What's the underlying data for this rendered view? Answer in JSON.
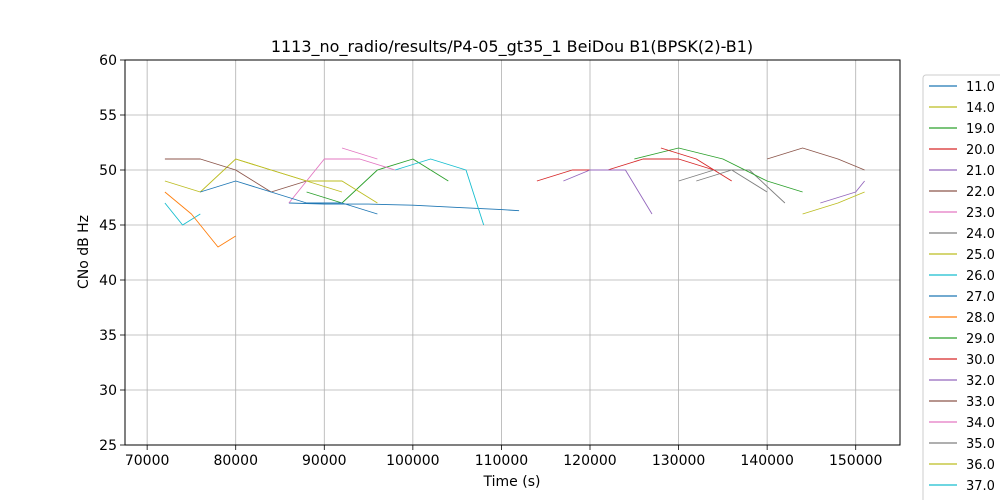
{
  "chart_data": {
    "type": "line",
    "title": "1113_no_radio/results/P4-05_gt35_1 BeiDou B1(BPSK(2)-B1)",
    "xlabel": "Time (s)",
    "ylabel": "CNo dB Hz",
    "xlim": [
      67500,
      155000
    ],
    "ylim": [
      25,
      60
    ],
    "xticks": [
      70000,
      80000,
      90000,
      100000,
      110000,
      120000,
      130000,
      140000,
      150000
    ],
    "yticks": [
      25,
      30,
      35,
      40,
      45,
      50,
      55,
      60
    ],
    "grid": true,
    "legend_position": "right (outside)",
    "series": [
      {
        "name": "11.0",
        "color": "#1f77b4",
        "x": [
          86000,
          90000,
          95000,
          100000,
          105000,
          110000,
          112000
        ],
        "y": [
          47.0,
          46.9,
          46.9,
          46.8,
          46.6,
          46.4,
          46.3
        ]
      },
      {
        "name": "14.0",
        "color": "#bcbd22",
        "x": [
          72000,
          76000,
          80000,
          84000,
          88000,
          92000
        ],
        "y": [
          49,
          48,
          51,
          50,
          49,
          48
        ]
      },
      {
        "name": "19.0",
        "color": "#2ca02c",
        "x": [
          88000,
          92000,
          96000,
          100000,
          104000
        ],
        "y": [
          48,
          47,
          50,
          51,
          49
        ]
      },
      {
        "name": "20.0",
        "color": "#d62728",
        "x": [
          114000,
          118000,
          122000,
          126000,
          130000,
          134000
        ],
        "y": [
          49,
          50,
          50,
          51,
          51,
          50
        ]
      },
      {
        "name": "21.0",
        "color": "#9467bd",
        "x": [
          117000,
          120000,
          124000,
          127000
        ],
        "y": [
          49,
          50,
          50,
          46
        ]
      },
      {
        "name": "22.0",
        "color": "#8c564b",
        "x": [
          72000,
          76000,
          80000,
          84000,
          88000
        ],
        "y": [
          51,
          51,
          50,
          48,
          49
        ]
      },
      {
        "name": "23.0",
        "color": "#e377c2",
        "x": [
          86000,
          90000,
          94000,
          98000
        ],
        "y": [
          47,
          51,
          51,
          50
        ]
      },
      {
        "name": "24.0",
        "color": "#7f7f7f",
        "x": [
          130000,
          134000,
          138000,
          142000
        ],
        "y": [
          49,
          50,
          50,
          47
        ]
      },
      {
        "name": "25.0",
        "color": "#bcbd22",
        "x": [
          80000,
          84000,
          88000,
          92000,
          96000
        ],
        "y": [
          51,
          50,
          49,
          49,
          47
        ]
      },
      {
        "name": "26.0",
        "color": "#17becf",
        "x": [
          72000,
          74000,
          76000
        ],
        "y": [
          47,
          45,
          46
        ]
      },
      {
        "name": "27.0",
        "color": "#1f77b4",
        "x": [
          76000,
          80000,
          84000,
          88000,
          92000,
          96000
        ],
        "y": [
          48,
          49,
          48,
          47,
          47,
          46
        ]
      },
      {
        "name": "28.0",
        "color": "#ff7f0e",
        "x": [
          72000,
          75000,
          78000,
          80000
        ],
        "y": [
          48,
          46,
          43,
          44
        ]
      },
      {
        "name": "29.0",
        "color": "#2ca02c",
        "x": [
          125000,
          130000,
          135000,
          140000,
          144000
        ],
        "y": [
          51,
          52,
          51,
          49,
          48
        ]
      },
      {
        "name": "30.0",
        "color": "#d62728",
        "x": [
          128000,
          132000,
          136000
        ],
        "y": [
          52,
          51,
          49
        ]
      },
      {
        "name": "32.0",
        "color": "#9467bd",
        "x": [
          146000,
          150000,
          151000
        ],
        "y": [
          47,
          48,
          49
        ]
      },
      {
        "name": "33.0",
        "color": "#8c564b",
        "x": [
          140000,
          144000,
          148000,
          151000
        ],
        "y": [
          51,
          52,
          51,
          50
        ]
      },
      {
        "name": "34.0",
        "color": "#e377c2",
        "x": [
          92000,
          96000
        ],
        "y": [
          52,
          51
        ]
      },
      {
        "name": "35.0",
        "color": "#7f7f7f",
        "x": [
          132000,
          136000,
          140000
        ],
        "y": [
          49,
          50,
          48
        ]
      },
      {
        "name": "36.0",
        "color": "#bcbd22",
        "x": [
          144000,
          148000,
          151000
        ],
        "y": [
          46,
          47,
          48
        ]
      },
      {
        "name": "37.0",
        "color": "#17becf",
        "x": [
          98000,
          102000,
          106000,
          108000
        ],
        "y": [
          50,
          51,
          50,
          45
        ]
      }
    ]
  }
}
